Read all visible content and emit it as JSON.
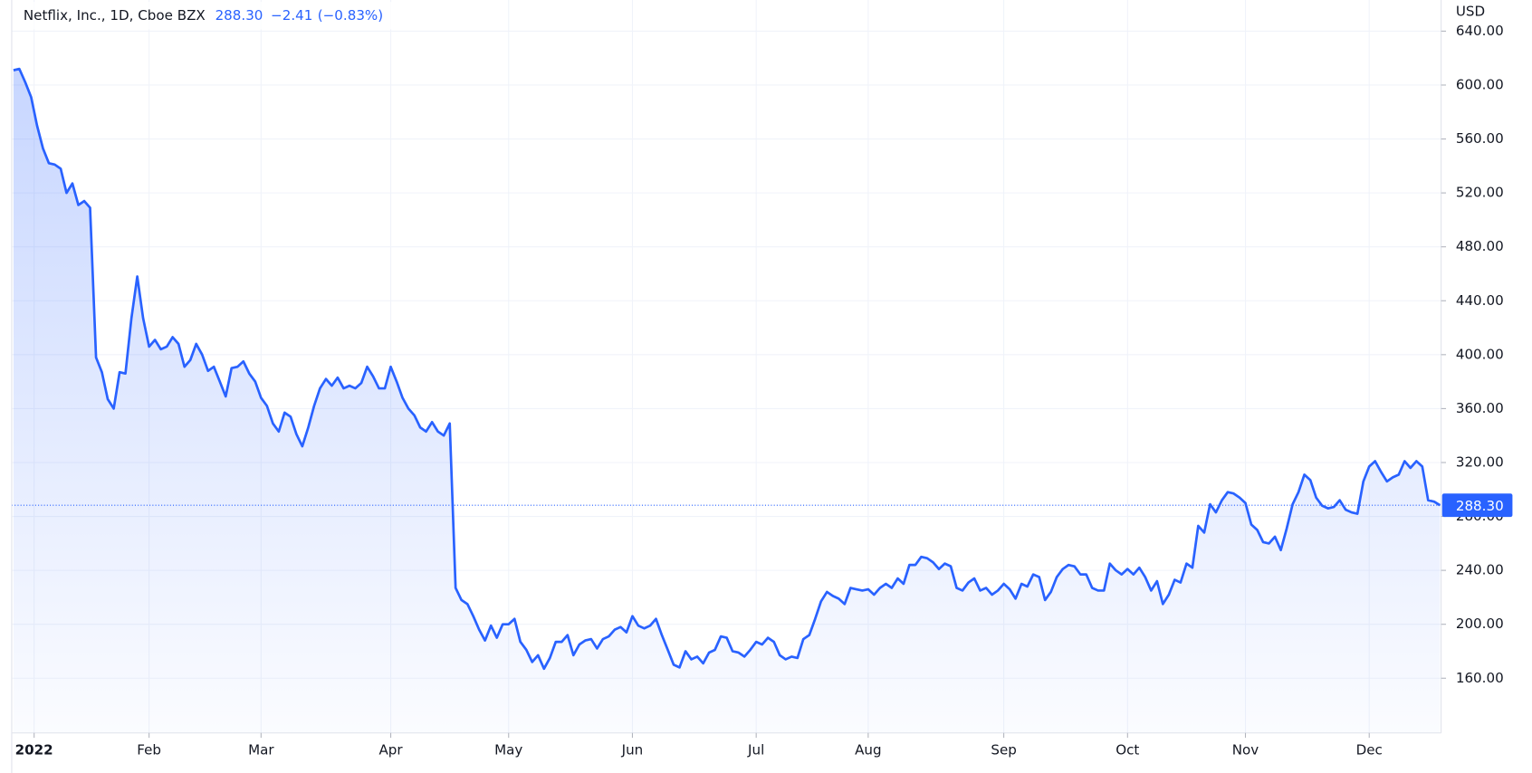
{
  "chart_data": {
    "type": "area",
    "title": "Netflix, Inc., 1D, Cboe BZX",
    "price_label": "288.30",
    "change_label": "−2.41",
    "change_pct_label": "(−0.83%)",
    "currency": "USD",
    "color": "#2962ff",
    "grid": true,
    "values": [
      611,
      612,
      602,
      591,
      570,
      553,
      542,
      541,
      538,
      520,
      527,
      511,
      514,
      509,
      398,
      387,
      367,
      360,
      387,
      386,
      427,
      458,
      427,
      406,
      411,
      404,
      406,
      413,
      408,
      391,
      396,
      408,
      400,
      388,
      391,
      380,
      369,
      390,
      391,
      395,
      386,
      380,
      368,
      362,
      349,
      343,
      357,
      354,
      341,
      332,
      346,
      362,
      375,
      382,
      377,
      383,
      375,
      377,
      375,
      379,
      391,
      384,
      375,
      375,
      391,
      380,
      368,
      360,
      355,
      346,
      343,
      350,
      343,
      340,
      349,
      227,
      218,
      215,
      206,
      196,
      188,
      199,
      190,
      200,
      200,
      204,
      187,
      181,
      172,
      177,
      167,
      175,
      187,
      187,
      192,
      177,
      185,
      188,
      189,
      182,
      189,
      191,
      196,
      198,
      194,
      206,
      199,
      197,
      199,
      204,
      192,
      181,
      170,
      168,
      180,
      174,
      176,
      171,
      179,
      181,
      191,
      190,
      180,
      179,
      176,
      181,
      187,
      185,
      190,
      187,
      177,
      174,
      176,
      175,
      189,
      192,
      204,
      217,
      224,
      221,
      219,
      215,
      227,
      226,
      225,
      226,
      222,
      227,
      230,
      227,
      234,
      230,
      244,
      244,
      250,
      249,
      246,
      241,
      245,
      243,
      227,
      225,
      231,
      234,
      225,
      227,
      222,
      225,
      230,
      226,
      219,
      230,
      228,
      237,
      235,
      218,
      224,
      235,
      241,
      244,
      243,
      237,
      237,
      227,
      225,
      225,
      245,
      240,
      237,
      241,
      237,
      242,
      235,
      225,
      232,
      215,
      222,
      233,
      231,
      245,
      242,
      273,
      268,
      289,
      283,
      292,
      298,
      297,
      294,
      290,
      274,
      270,
      261,
      260,
      265,
      255,
      271,
      289,
      298,
      311,
      307,
      294,
      288,
      286,
      287,
      292,
      285,
      283,
      282,
      306,
      317,
      321,
      313,
      306,
      309,
      311,
      321,
      316,
      321,
      317,
      292,
      291,
      288.3
    ],
    "xlim": [
      -0.3,
      242.2
    ],
    "xticks": [
      {
        "value": 3.5,
        "label": "2022"
      },
      {
        "value": 23,
        "label": "Feb"
      },
      {
        "value": 42,
        "label": "Mar"
      },
      {
        "value": 64,
        "label": "Apr"
      },
      {
        "value": 84,
        "label": "May"
      },
      {
        "value": 105,
        "label": "Jun"
      },
      {
        "value": 126,
        "label": "Jul"
      },
      {
        "value": 145,
        "label": "Aug"
      },
      {
        "value": 168,
        "label": "Sep"
      },
      {
        "value": 189,
        "label": "Oct"
      },
      {
        "value": 209,
        "label": "Nov"
      },
      {
        "value": 230,
        "label": "Dec"
      }
    ],
    "ylim": [
      119.4,
      663.1
    ],
    "yticks": [
      {
        "value": 160,
        "label": "160.00"
      },
      {
        "value": 200,
        "label": "200.00"
      },
      {
        "value": 240,
        "label": "240.00"
      },
      {
        "value": 280,
        "label": "280.00"
      },
      {
        "value": 320,
        "label": "320.00"
      },
      {
        "value": 360,
        "label": "360.00"
      },
      {
        "value": 400,
        "label": "400.00"
      },
      {
        "value": 440,
        "label": "440.00"
      },
      {
        "value": 480,
        "label": "480.00"
      },
      {
        "value": 520,
        "label": "520.00"
      },
      {
        "value": 560,
        "label": "560.00"
      },
      {
        "value": 600,
        "label": "600.00"
      },
      {
        "value": 640,
        "label": "640.00"
      }
    ]
  }
}
